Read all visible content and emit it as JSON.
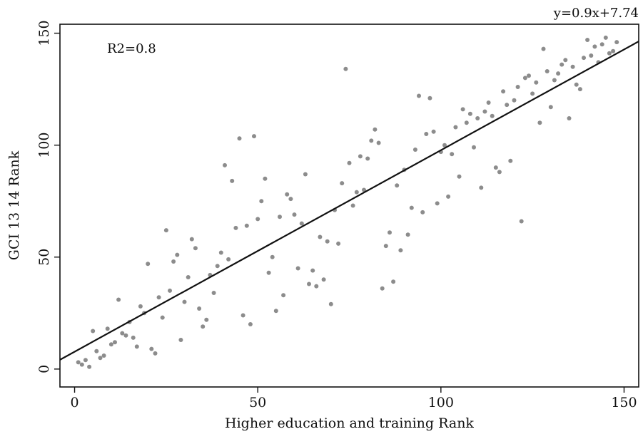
{
  "chart_data": {
    "type": "scatter",
    "xlabel": "Higher education and training Rank",
    "ylabel": "GCI 13 14 Rank",
    "xlim": [
      -4,
      154
    ],
    "ylim": [
      -8,
      154
    ],
    "x_ticks": [
      0,
      50,
      100,
      150
    ],
    "y_ticks": [
      0,
      50,
      100,
      150
    ],
    "grid": false,
    "point_color": "#8c8c8c",
    "line_color": "#111111",
    "annotations": {
      "r2": "R2=0.8",
      "equation": "y=0.9x+7.74"
    },
    "fit": {
      "slope": 0.9,
      "intercept": 7.74,
      "x_range": [
        -4,
        154
      ]
    },
    "series": [
      {
        "points": [
          [
            1,
            3
          ],
          [
            2,
            2
          ],
          [
            3,
            4
          ],
          [
            4,
            1
          ],
          [
            5,
            17
          ],
          [
            6,
            8
          ],
          [
            7,
            5
          ],
          [
            8,
            6
          ],
          [
            9,
            18
          ],
          [
            10,
            11
          ],
          [
            11,
            12
          ],
          [
            12,
            31
          ],
          [
            13,
            16
          ],
          [
            14,
            15
          ],
          [
            15,
            21
          ],
          [
            16,
            14
          ],
          [
            17,
            10
          ],
          [
            18,
            28
          ],
          [
            19,
            25
          ],
          [
            20,
            47
          ],
          [
            21,
            9
          ],
          [
            22,
            7
          ],
          [
            23,
            32
          ],
          [
            24,
            23
          ],
          [
            25,
            62
          ],
          [
            26,
            35
          ],
          [
            27,
            48
          ],
          [
            28,
            51
          ],
          [
            29,
            13
          ],
          [
            30,
            30
          ],
          [
            31,
            41
          ],
          [
            32,
            58
          ],
          [
            33,
            54
          ],
          [
            34,
            27
          ],
          [
            35,
            19
          ],
          [
            36,
            22
          ],
          [
            37,
            42
          ],
          [
            38,
            34
          ],
          [
            39,
            46
          ],
          [
            40,
            52
          ],
          [
            41,
            91
          ],
          [
            42,
            49
          ],
          [
            43,
            84
          ],
          [
            44,
            63
          ],
          [
            45,
            103
          ],
          [
            46,
            24
          ],
          [
            47,
            64
          ],
          [
            48,
            20
          ],
          [
            49,
            104
          ],
          [
            50,
            67
          ],
          [
            51,
            75
          ],
          [
            52,
            85
          ],
          [
            53,
            43
          ],
          [
            54,
            50
          ],
          [
            55,
            26
          ],
          [
            56,
            68
          ],
          [
            57,
            33
          ],
          [
            58,
            78
          ],
          [
            59,
            76
          ],
          [
            60,
            69
          ],
          [
            61,
            45
          ],
          [
            62,
            65
          ],
          [
            63,
            87
          ],
          [
            64,
            38
          ],
          [
            65,
            44
          ],
          [
            66,
            37
          ],
          [
            67,
            59
          ],
          [
            68,
            40
          ],
          [
            69,
            57
          ],
          [
            70,
            29
          ],
          [
            71,
            71
          ],
          [
            72,
            56
          ],
          [
            73,
            83
          ],
          [
            74,
            134
          ],
          [
            75,
            92
          ],
          [
            76,
            73
          ],
          [
            77,
            79
          ],
          [
            78,
            95
          ],
          [
            79,
            80
          ],
          [
            80,
            94
          ],
          [
            81,
            102
          ],
          [
            82,
            107
          ],
          [
            83,
            101
          ],
          [
            84,
            36
          ],
          [
            85,
            55
          ],
          [
            86,
            61
          ],
          [
            87,
            39
          ],
          [
            88,
            82
          ],
          [
            89,
            53
          ],
          [
            90,
            89
          ],
          [
            91,
            60
          ],
          [
            92,
            72
          ],
          [
            93,
            98
          ],
          [
            94,
            122
          ],
          [
            95,
            70
          ],
          [
            96,
            105
          ],
          [
            97,
            121
          ],
          [
            98,
            106
          ],
          [
            99,
            74
          ],
          [
            100,
            97
          ],
          [
            101,
            100
          ],
          [
            102,
            77
          ],
          [
            103,
            96
          ],
          [
            104,
            108
          ],
          [
            105,
            86
          ],
          [
            106,
            116
          ],
          [
            107,
            110
          ],
          [
            108,
            114
          ],
          [
            109,
            99
          ],
          [
            110,
            112
          ],
          [
            111,
            81
          ],
          [
            112,
            115
          ],
          [
            113,
            119
          ],
          [
            114,
            113
          ],
          [
            115,
            90
          ],
          [
            116,
            88
          ],
          [
            117,
            124
          ],
          [
            118,
            118
          ],
          [
            119,
            93
          ],
          [
            120,
            120
          ],
          [
            121,
            126
          ],
          [
            122,
            66
          ],
          [
            123,
            130
          ],
          [
            124,
            131
          ],
          [
            125,
            123
          ],
          [
            126,
            128
          ],
          [
            127,
            110
          ],
          [
            128,
            143
          ],
          [
            129,
            133
          ],
          [
            130,
            117
          ],
          [
            131,
            129
          ],
          [
            132,
            132
          ],
          [
            133,
            136
          ],
          [
            134,
            138
          ],
          [
            135,
            112
          ],
          [
            136,
            135
          ],
          [
            137,
            127
          ],
          [
            138,
            125
          ],
          [
            139,
            139
          ],
          [
            140,
            147
          ],
          [
            141,
            140
          ],
          [
            142,
            144
          ],
          [
            143,
            137
          ],
          [
            144,
            145
          ],
          [
            145,
            148
          ],
          [
            146,
            141
          ],
          [
            147,
            142
          ],
          [
            148,
            146
          ]
        ]
      }
    ]
  }
}
